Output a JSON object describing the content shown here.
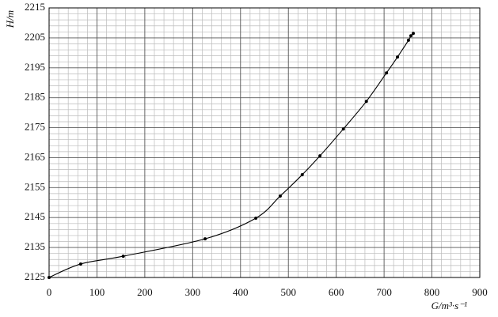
{
  "chart_data": {
    "type": "scatter",
    "x_label": "G/m³·s⁻¹",
    "y_label": "H/m",
    "x": [
      0,
      66,
      155,
      326,
      432,
      483,
      529,
      566,
      615,
      663,
      705,
      728,
      751,
      756,
      761
    ],
    "series": [
      {
        "color": "#000000",
        "values": [
          2125,
          2129.5,
          2132.1,
          2137.9,
          2144.8,
          2152.2,
          2159.3,
          2165.6,
          2174.6,
          2183.8,
          2193.3,
          2198.6,
          2204.2,
          2205.7,
          2206.5
        ]
      }
    ],
    "xlim": [
      0,
      900
    ],
    "xticks": [
      0,
      100,
      200,
      300,
      400,
      500,
      600,
      700,
      800,
      900
    ],
    "ylim": [
      2125,
      2215
    ],
    "yticks": [
      2125,
      2135,
      2145,
      2155,
      2165,
      2175,
      2185,
      2195,
      2205,
      2215
    ],
    "grid": true,
    "fit_curve": true
  }
}
